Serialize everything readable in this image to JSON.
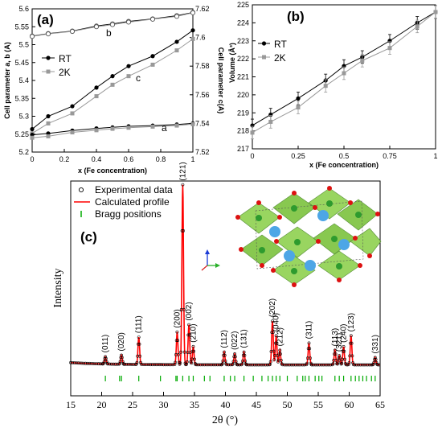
{
  "chart_data": [
    {
      "type": "line",
      "panel_label": "(a)",
      "xlabel": "x (Fe concentration)",
      "ylabel": "Cell parameter a, b (A)",
      "ylabel_right": "Cell parameter c(A)",
      "xlim": [
        0,
        1
      ],
      "ylim": [
        5.2,
        5.6
      ],
      "ylim_right": [
        7.52,
        7.62
      ],
      "x_ticks": [
        "0",
        "0.2",
        "0.4",
        "0.6",
        "0.8",
        "1"
      ],
      "y_ticks": [
        "5.2",
        "5.25",
        "5.3",
        "5.35",
        "5.4",
        "5.45",
        "5.5",
        "5.55",
        "5.6"
      ],
      "y_ticks_right": [
        "7.52",
        "7.54",
        "7.56",
        "7.58",
        "7.6",
        "7.62"
      ],
      "legend": [
        "RT",
        "2K"
      ],
      "annotations": [
        "b",
        "c",
        "a"
      ],
      "x": [
        0,
        0.1,
        0.25,
        0.4,
        0.5,
        0.6,
        0.75,
        0.9,
        1
      ],
      "series": [
        {
          "name": "RT",
          "param": "b",
          "axis": "left",
          "values": [
            5.524,
            5.531,
            5.538,
            5.552,
            5.558,
            5.565,
            5.572,
            5.581,
            5.59
          ]
        },
        {
          "name": "2K",
          "param": "b",
          "axis": "left",
          "values": [
            5.523,
            5.53,
            5.537,
            5.55,
            5.556,
            5.563,
            5.571,
            5.579,
            5.589
          ]
        },
        {
          "name": "RT",
          "param": "c",
          "axis": "right",
          "values": [
            7.536,
            7.545,
            7.552,
            7.565,
            7.573,
            7.58,
            7.587,
            7.597,
            7.605
          ]
        },
        {
          "name": "2K",
          "param": "c",
          "axis": "right",
          "values": [
            7.533,
            7.54,
            7.547,
            7.559,
            7.567,
            7.573,
            7.581,
            7.591,
            7.599
          ]
        },
        {
          "name": "RT",
          "param": "a",
          "axis": "left",
          "values": [
            5.248,
            5.252,
            5.26,
            5.266,
            5.269,
            5.272,
            5.274,
            5.277,
            5.28
          ]
        },
        {
          "name": "2K",
          "param": "a",
          "axis": "left",
          "values": [
            5.24,
            5.244,
            5.255,
            5.261,
            5.265,
            5.268,
            5.271,
            5.274,
            5.278
          ]
        }
      ],
      "colors": {
        "RT": "#000000",
        "2K": "#999999"
      }
    },
    {
      "type": "line",
      "panel_label": "(b)",
      "xlabel": "x (Fe concentration)",
      "ylabel": "Volume (Å³)",
      "xlim": [
        0,
        1
      ],
      "ylim": [
        217,
        225
      ],
      "x_ticks": [
        "0",
        "0.25",
        "0.5",
        "0.75",
        "1"
      ],
      "y_ticks": [
        "217",
        "218",
        "219",
        "220",
        "221",
        "222",
        "223",
        "224",
        "225"
      ],
      "legend": [
        "RT",
        "2K"
      ],
      "x": [
        0,
        0.1,
        0.25,
        0.4,
        0.5,
        0.6,
        0.75,
        0.9,
        1
      ],
      "series": [
        {
          "name": "RT",
          "values": [
            218.3,
            218.9,
            219.8,
            220.8,
            221.6,
            222.1,
            223.0,
            224.0,
            224.6
          ],
          "error": 0.35
        },
        {
          "name": "2K",
          "values": [
            217.9,
            218.5,
            219.3,
            220.5,
            221.2,
            221.9,
            222.6,
            223.8,
            224.6
          ],
          "error": 0.35
        }
      ],
      "colors": {
        "RT": "#000000",
        "2K": "#999999"
      }
    },
    {
      "type": "line",
      "panel_label": "(c)",
      "xlabel": "2θ (°)",
      "ylabel": "Intensity",
      "xlim": [
        15,
        65
      ],
      "x_ticks": [
        "15",
        "20",
        "25",
        "30",
        "35",
        "40",
        "45",
        "50",
        "55",
        "60",
        "65"
      ],
      "legend": [
        "Experimental data",
        "Calculated profile",
        "Bragg positions"
      ],
      "colors": {
        "experimental": "#000000",
        "calculated": "#ff0000",
        "bragg": "#00aa00"
      },
      "baseline": 0.02,
      "peaks": [
        {
          "hkl": "(011)",
          "x": 20.6,
          "h": 0.04
        },
        {
          "hkl": "(020)",
          "x": 23.2,
          "h": 0.05
        },
        {
          "hkl": "(111)",
          "x": 26.0,
          "h": 0.15
        },
        {
          "hkl": "(200)",
          "x": 32.2,
          "h": 0.18
        },
        {
          "hkl": "(121)",
          "x": 33.1,
          "h": 0.99
        },
        {
          "hkl": "(002)",
          "x": 34.1,
          "h": 0.22
        },
        {
          "hkl": "(210)",
          "x": 34.8,
          "h": 0.1
        },
        {
          "hkl": "(112)",
          "x": 39.8,
          "h": 0.07
        },
        {
          "hkl": "(022)",
          "x": 41.5,
          "h": 0.06
        },
        {
          "hkl": "(131)",
          "x": 43.0,
          "h": 0.07
        },
        {
          "hkl": "(202)",
          "x": 47.6,
          "h": 0.24
        },
        {
          "hkl": "(040)",
          "x": 48.2,
          "h": 0.16
        },
        {
          "hkl": "(212)",
          "x": 48.8,
          "h": 0.08
        },
        {
          "hkl": "(311)",
          "x": 53.5,
          "h": 0.12
        },
        {
          "hkl": "(113)",
          "x": 57.7,
          "h": 0.08
        },
        {
          "hkl": "(321)",
          "x": 58.4,
          "h": 0.05
        },
        {
          "hkl": "(240)",
          "x": 59.1,
          "h": 0.1
        },
        {
          "hkl": "(123)",
          "x": 60.3,
          "h": 0.16
        },
        {
          "hkl": "(331)",
          "x": 64.2,
          "h": 0.04
        }
      ],
      "bragg_positions": [
        20.6,
        22.9,
        23.2,
        26.0,
        29.5,
        32.0,
        32.2,
        33.1,
        34.1,
        34.8,
        36.6,
        37.5,
        39.8,
        40.8,
        41.5,
        43.0,
        44.5,
        45.9,
        46.9,
        47.6,
        48.2,
        48.8,
        50.0,
        51.6,
        52.5,
        52.9,
        53.5,
        54.5,
        55.1,
        55.6,
        57.7,
        58.4,
        59.1,
        60.3,
        61.0,
        61.6,
        62.2,
        62.8,
        63.6,
        64.2
      ]
    }
  ]
}
